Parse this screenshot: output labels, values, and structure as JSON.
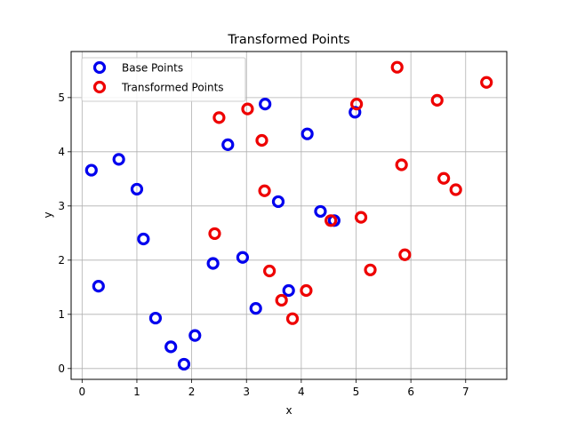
{
  "chart_data": {
    "type": "scatter",
    "title": "Transformed Points",
    "xlabel": "x",
    "ylabel": "y",
    "xlim": [
      -0.2,
      7.75
    ],
    "ylim": [
      -0.2,
      5.85
    ],
    "x_ticks": [
      0,
      1,
      2,
      3,
      4,
      5,
      6,
      7
    ],
    "y_ticks": [
      0,
      1,
      2,
      3,
      4,
      5
    ],
    "grid": true,
    "legend_position": "upper-left",
    "series": [
      {
        "name": "Base Points",
        "color": "#0000ee",
        "marker": "hollow-circle",
        "points": [
          [
            0.17,
            3.66
          ],
          [
            0.67,
            3.86
          ],
          [
            0.3,
            1.52
          ],
          [
            1.0,
            3.31
          ],
          [
            1.12,
            2.39
          ],
          [
            1.34,
            0.93
          ],
          [
            1.62,
            0.4
          ],
          [
            1.86,
            0.08
          ],
          [
            2.06,
            0.61
          ],
          [
            2.39,
            1.94
          ],
          [
            2.66,
            4.13
          ],
          [
            2.93,
            2.05
          ],
          [
            3.17,
            1.11
          ],
          [
            3.34,
            4.88
          ],
          [
            3.58,
            3.08
          ],
          [
            3.77,
            1.44
          ],
          [
            4.11,
            4.33
          ],
          [
            4.35,
            2.9
          ],
          [
            4.6,
            2.73
          ],
          [
            4.98,
            4.73
          ]
        ]
      },
      {
        "name": "Transformed Points",
        "color": "#ee0000",
        "marker": "hollow-circle",
        "points": [
          [
            2.42,
            2.49
          ],
          [
            2.5,
            4.63
          ],
          [
            3.02,
            4.79
          ],
          [
            3.28,
            4.21
          ],
          [
            3.33,
            3.28
          ],
          [
            3.42,
            1.8
          ],
          [
            3.64,
            1.26
          ],
          [
            3.84,
            0.92
          ],
          [
            4.09,
            1.44
          ],
          [
            4.54,
            2.73
          ],
          [
            5.01,
            4.88
          ],
          [
            5.09,
            2.79
          ],
          [
            5.26,
            1.82
          ],
          [
            5.75,
            5.56
          ],
          [
            5.83,
            3.76
          ],
          [
            5.89,
            2.1
          ],
          [
            6.48,
            4.95
          ],
          [
            6.6,
            3.51
          ],
          [
            6.82,
            3.3
          ],
          [
            7.38,
            5.28
          ]
        ]
      }
    ]
  }
}
